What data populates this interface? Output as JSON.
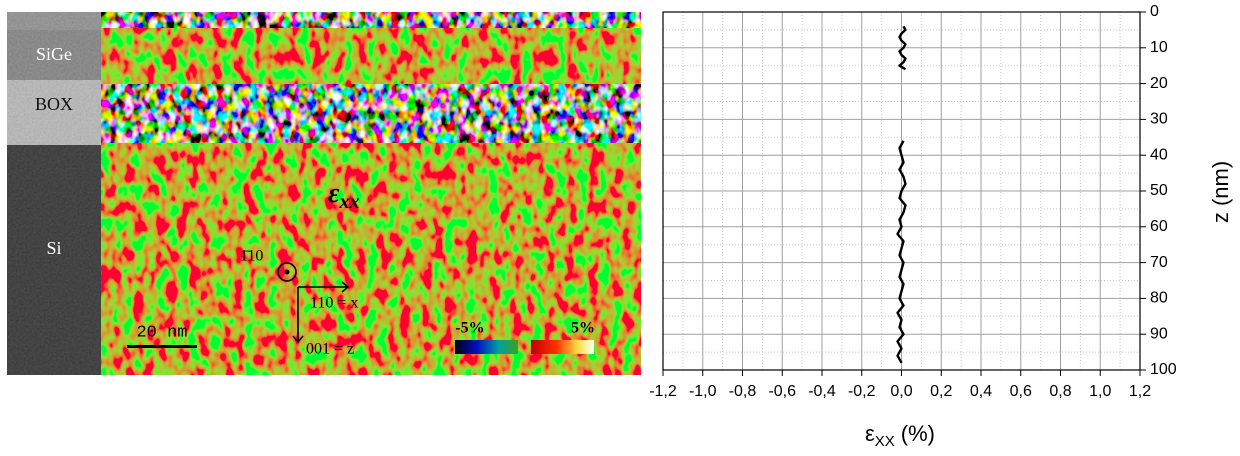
{
  "image_panels": {
    "layers": [
      "SiGe",
      "BOX",
      "Si"
    ],
    "map_label": "ε",
    "map_label_sub": "xx",
    "direction_normal": "1̄10",
    "axis_x": "110 = x",
    "axis_z": "001 = z",
    "scale_bar": "20 nm",
    "colorbar_min": "-5%",
    "colorbar_max": "5%"
  },
  "chart_data": {
    "type": "line",
    "orientation": "vertical",
    "x_label": "ε",
    "x_label_sub": "XX",
    "x_label_unit": "(%)",
    "y_label": "z (nm)",
    "color": "#000000",
    "y": [
      4,
      5,
      6,
      7,
      8,
      9,
      10,
      11,
      12,
      13,
      14,
      15,
      16,
      26,
      36,
      38,
      40,
      42,
      44,
      46,
      48,
      50,
      52,
      54,
      56,
      58,
      60,
      62,
      64,
      66,
      68,
      70,
      72,
      74,
      76,
      78,
      80,
      82,
      84,
      86,
      88,
      90,
      92,
      94,
      96,
      98
    ],
    "values": [
      0.01,
      0.02,
      0.0,
      -0.01,
      0.0,
      0.02,
      0.01,
      -0.01,
      0.0,
      0.02,
      0.01,
      -0.01,
      0.02,
      null,
      0.01,
      -0.01,
      0.0,
      0.01,
      -0.01,
      0.01,
      0.02,
      0.0,
      -0.01,
      0.02,
      0.01,
      -0.01,
      0.0,
      -0.02,
      0.01,
      0.0,
      -0.01,
      0.01,
      0.0,
      -0.01,
      0.01,
      0.0,
      -0.01,
      0.01,
      -0.02,
      0.0,
      -0.01,
      0.01,
      -0.02,
      0.0,
      -0.02,
      0.0
    ],
    "xlim": [
      -1.2,
      1.2
    ],
    "xticks": [
      {
        "value": -1.2,
        "label": "-1,2"
      },
      {
        "value": -1.0,
        "label": "-1,0"
      },
      {
        "value": -0.8,
        "label": "-0,8"
      },
      {
        "value": -0.6,
        "label": "-0,6"
      },
      {
        "value": -0.4,
        "label": "-0,4"
      },
      {
        "value": -0.2,
        "label": "-0,2"
      },
      {
        "value": 0.0,
        "label": "0,0"
      },
      {
        "value": 0.2,
        "label": "0,2"
      },
      {
        "value": 0.4,
        "label": "0,4"
      },
      {
        "value": 0.6,
        "label": "0,6"
      },
      {
        "value": 0.8,
        "label": "0,8"
      },
      {
        "value": 1.0,
        "label": "1,0"
      },
      {
        "value": 1.2,
        "label": "1,2"
      }
    ],
    "ylim": [
      0,
      100
    ],
    "y_inverted": true,
    "y_axis_side": "right",
    "yticks": [
      0,
      10,
      20,
      30,
      40,
      50,
      60,
      70,
      80,
      90,
      100
    ],
    "grid": true,
    "minor_grid": true
  }
}
